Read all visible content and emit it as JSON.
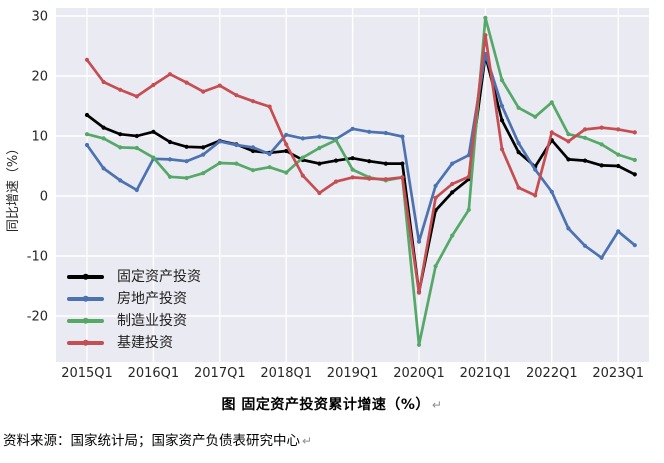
{
  "figure": {
    "caption": "图 固定资产投资累计增速（%）",
    "source_note": "资料来源：国家统计局；国家资产负债表研究中心",
    "return_mark": "↵"
  },
  "chart_data": {
    "type": "line",
    "title": "图 固定资产投资累计增速（%）",
    "xlabel": "",
    "ylabel": "同比增速（%）",
    "grid": true,
    "plot_background": "#eaeaf2",
    "grid_color": "#ffffff",
    "tick_label_color": "#262626",
    "legend_position": "lower-left-inside",
    "y_ticks": [
      30,
      20,
      10,
      0,
      -10,
      -20
    ],
    "ylim": [
      -27.7,
      31.3
    ],
    "x_tick_labels": [
      "2015Q1",
      "2016Q1",
      "2017Q1",
      "2018Q1",
      "2019Q1",
      "2020Q1",
      "2021Q1",
      "2022Q1",
      "2023Q1"
    ],
    "categories": [
      "2015Q1",
      "2015Q2",
      "2015Q3",
      "2015Q4",
      "2016Q1",
      "2016Q2",
      "2016Q3",
      "2016Q4",
      "2017Q1",
      "2017Q2",
      "2017Q3",
      "2017Q4",
      "2018Q1",
      "2018Q2",
      "2018Q3",
      "2018Q4",
      "2019Q1",
      "2019Q2",
      "2019Q3",
      "2019Q4",
      "2020Q1",
      "2020Q2",
      "2020Q3",
      "2020Q4",
      "2021Q1",
      "2021Q2",
      "2021Q3",
      "2021Q4",
      "2022Q1",
      "2022Q2",
      "2022Q3",
      "2022Q4",
      "2023Q1",
      "2023Q2"
    ],
    "series": [
      {
        "name": "固定资产投资",
        "color": "#000000",
        "values": [
          13.5,
          11.4,
          10.3,
          10.0,
          10.7,
          9.0,
          8.2,
          8.1,
          9.2,
          8.6,
          7.5,
          7.2,
          7.5,
          6.0,
          5.4,
          5.9,
          6.3,
          5.8,
          5.4,
          5.4,
          -16.0,
          -2.4,
          0.6,
          2.8,
          23.4,
          12.6,
          7.3,
          4.9,
          9.3,
          6.1,
          5.9,
          5.1,
          5.0,
          3.6
        ]
      },
      {
        "name": "房地产投资",
        "color": "#4c72b0",
        "values": [
          8.5,
          4.6,
          2.6,
          1.0,
          6.2,
          6.1,
          5.8,
          6.9,
          9.1,
          8.5,
          8.1,
          7.0,
          10.2,
          9.6,
          9.9,
          9.5,
          11.2,
          10.7,
          10.5,
          9.9,
          -7.6,
          1.7,
          5.4,
          6.8,
          23.7,
          15.0,
          8.8,
          4.4,
          0.7,
          -5.4,
          -8.3,
          -10.3,
          -5.9,
          -8.2
        ]
      },
      {
        "name": "制造业投资",
        "color": "#55a868",
        "values": [
          10.3,
          9.6,
          8.1,
          8.0,
          6.4,
          3.2,
          3.0,
          3.8,
          5.5,
          5.4,
          4.3,
          4.8,
          3.9,
          6.4,
          8.0,
          9.3,
          4.4,
          3.1,
          2.6,
          3.1,
          -24.8,
          -11.7,
          -6.6,
          -2.3,
          29.7,
          19.3,
          14.7,
          13.2,
          15.6,
          10.3,
          9.7,
          8.6,
          6.9,
          6.0
        ]
      },
      {
        "name": "基建投资",
        "color": "#c44e52",
        "values": [
          22.7,
          19.0,
          17.7,
          16.6,
          18.5,
          20.3,
          18.9,
          17.4,
          18.4,
          16.8,
          15.8,
          14.9,
          8.6,
          3.4,
          0.5,
          2.4,
          3.1,
          2.9,
          2.8,
          3.1,
          -16.1,
          -0.3,
          2.0,
          3.2,
          26.8,
          7.8,
          1.4,
          0.1,
          10.6,
          9.1,
          11.1,
          11.4,
          11.1,
          10.6
        ]
      }
    ]
  }
}
